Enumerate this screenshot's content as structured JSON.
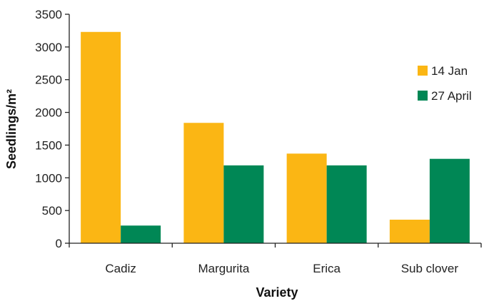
{
  "chart_data": {
    "type": "bar",
    "categories": [
      "Cadiz",
      "Margurita",
      "Erica",
      "Sub clover"
    ],
    "series": [
      {
        "name": "14 Jan",
        "color": "#fbb614",
        "values": [
          3230,
          1840,
          1370,
          360
        ]
      },
      {
        "name": "27 April",
        "color": "#008755",
        "values": [
          270,
          1190,
          1190,
          1290
        ]
      }
    ],
    "xlabel": "Variety",
    "ylabel": "Seedlings/m²",
    "ylim": [
      0,
      3500
    ],
    "yticks": [
      0,
      500,
      1000,
      1500,
      2000,
      2500,
      3000,
      3500
    ],
    "grid": false,
    "legend_position": "right"
  }
}
